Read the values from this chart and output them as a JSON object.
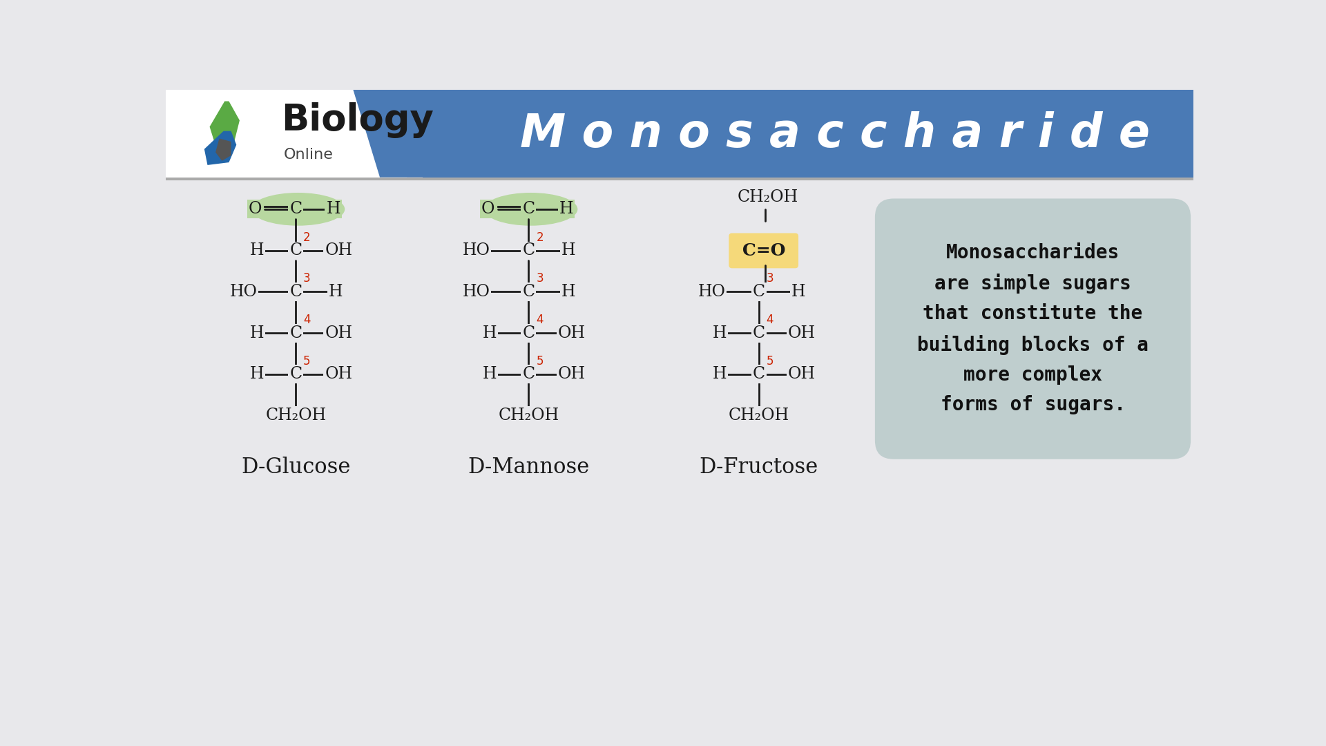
{
  "bg_color": "#e8e8eb",
  "header_color": "#4a7ab5",
  "header_text": "M o n o s a c c h a r i d e",
  "header_text_color": "#ffffff",
  "title_fontsize": 48,
  "molecule_label_fontsize": 22,
  "molecule_text_color": "#1a1a1a",
  "red_color": "#cc2200",
  "green_highlight": "#b8d8a0",
  "yellow_highlight": "#f5d97a",
  "teal_highlight": "#b0c4c4",
  "description_text": "Monosaccharides\nare simple sugars\nthat constitute the\nbuilding blocks of a\nmore complex\nforms of sugars.",
  "desc_fontsize": 20,
  "label_glucose": "D-Glucose",
  "label_mannose": "D-Mannose",
  "label_fructose": "D-Fructose"
}
